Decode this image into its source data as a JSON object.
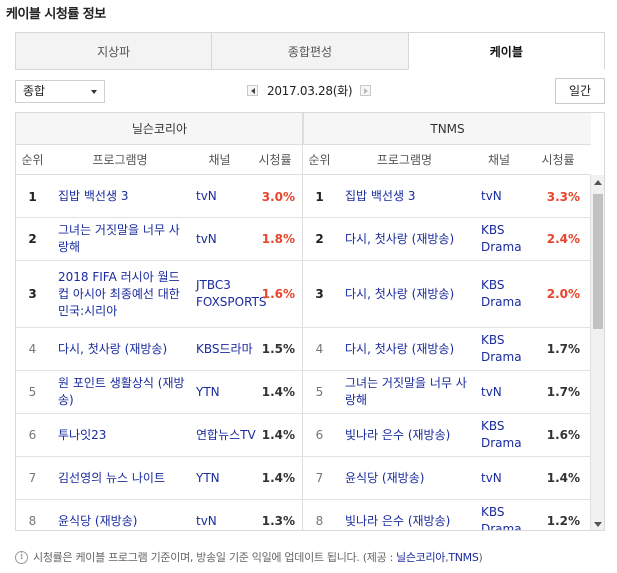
{
  "page": {
    "title": "케이블 시청률 정보"
  },
  "tabs": [
    {
      "label": "지상파",
      "active": false
    },
    {
      "label": "종합편성",
      "active": false
    },
    {
      "label": "케이블",
      "active": true
    }
  ],
  "controls": {
    "select_value": "종합",
    "date": "2017.03.28(화)",
    "day_button": "일간"
  },
  "table": {
    "sources": [
      "닐슨코리아",
      "TNMS"
    ],
    "columns": [
      "순위",
      "프로그램명",
      "채널",
      "시청률"
    ],
    "nielsen": [
      {
        "rank": "1",
        "program": "집밥 백선생 3",
        "channel": "tvN",
        "rating": "3.0%",
        "hot": true
      },
      {
        "rank": "2",
        "program": "그녀는 거짓말을 너무 사랑해",
        "channel": "tvN",
        "rating": "1.8%",
        "hot": true
      },
      {
        "rank": "3",
        "program": "2018 FIFA 러시아 월드컵 아시아 최종예선 대한민국:시리아",
        "channel": "JTBC3 FOXSPORTS",
        "rating": "1.6%",
        "hot": true
      },
      {
        "rank": "4",
        "program": "다시, 첫사랑 (재방송)",
        "channel": "KBS드라마",
        "rating": "1.5%",
        "hot": false
      },
      {
        "rank": "5",
        "program": "원 포인트 생활상식 (재방송)",
        "channel": "YTN",
        "rating": "1.4%",
        "hot": false
      },
      {
        "rank": "6",
        "program": "투나잇23",
        "channel": "연합뉴스TV",
        "rating": "1.4%",
        "hot": false
      },
      {
        "rank": "7",
        "program": "김선영의 뉴스 나이트",
        "channel": "YTN",
        "rating": "1.4%",
        "hot": false
      },
      {
        "rank": "8",
        "program": "윤식당 (재방송)",
        "channel": "tvN",
        "rating": "1.3%",
        "hot": false
      }
    ],
    "tnms": [
      {
        "rank": "1",
        "program": "집밥 백선생 3",
        "channel": "tvN",
        "rating": "3.3%",
        "hot": true
      },
      {
        "rank": "2",
        "program": "다시, 첫사랑 (재방송)",
        "channel": "KBS Drama",
        "rating": "2.4%",
        "hot": true
      },
      {
        "rank": "3",
        "program": "다시, 첫사랑 (재방송)",
        "channel": "KBS Drama",
        "rating": "2.0%",
        "hot": true
      },
      {
        "rank": "4",
        "program": "다시, 첫사랑 (재방송)",
        "channel": "KBS Drama",
        "rating": "1.7%",
        "hot": false
      },
      {
        "rank": "5",
        "program": "그녀는 거짓말을 너무 사랑해",
        "channel": "tvN",
        "rating": "1.7%",
        "hot": false
      },
      {
        "rank": "6",
        "program": "빛나라 은수 (재방송)",
        "channel": "KBS Drama",
        "rating": "1.6%",
        "hot": false
      },
      {
        "rank": "7",
        "program": "윤식당 (재방송)",
        "channel": "tvN",
        "rating": "1.4%",
        "hot": false
      },
      {
        "rank": "8",
        "program": "빛나라 은수 (재방송)",
        "channel": "KBS Drama",
        "rating": "1.2%",
        "hot": false
      }
    ]
  },
  "footnote": {
    "text": "시청률은 케이블 프로그램 기준이며, 방송일 기준 익일에 업데이트 됩니다. (제공 :",
    "provider1": "닐슨코리아",
    "separator": ",",
    "provider2": "TNMS",
    "close": ")"
  },
  "icons": {
    "info": "info-icon",
    "prev": "chevron-left-icon",
    "next": "chevron-right-icon",
    "dropdown": "caret-down-icon"
  },
  "colors": {
    "link": "#1a2b9e",
    "rating_hot": "#e8452c"
  }
}
